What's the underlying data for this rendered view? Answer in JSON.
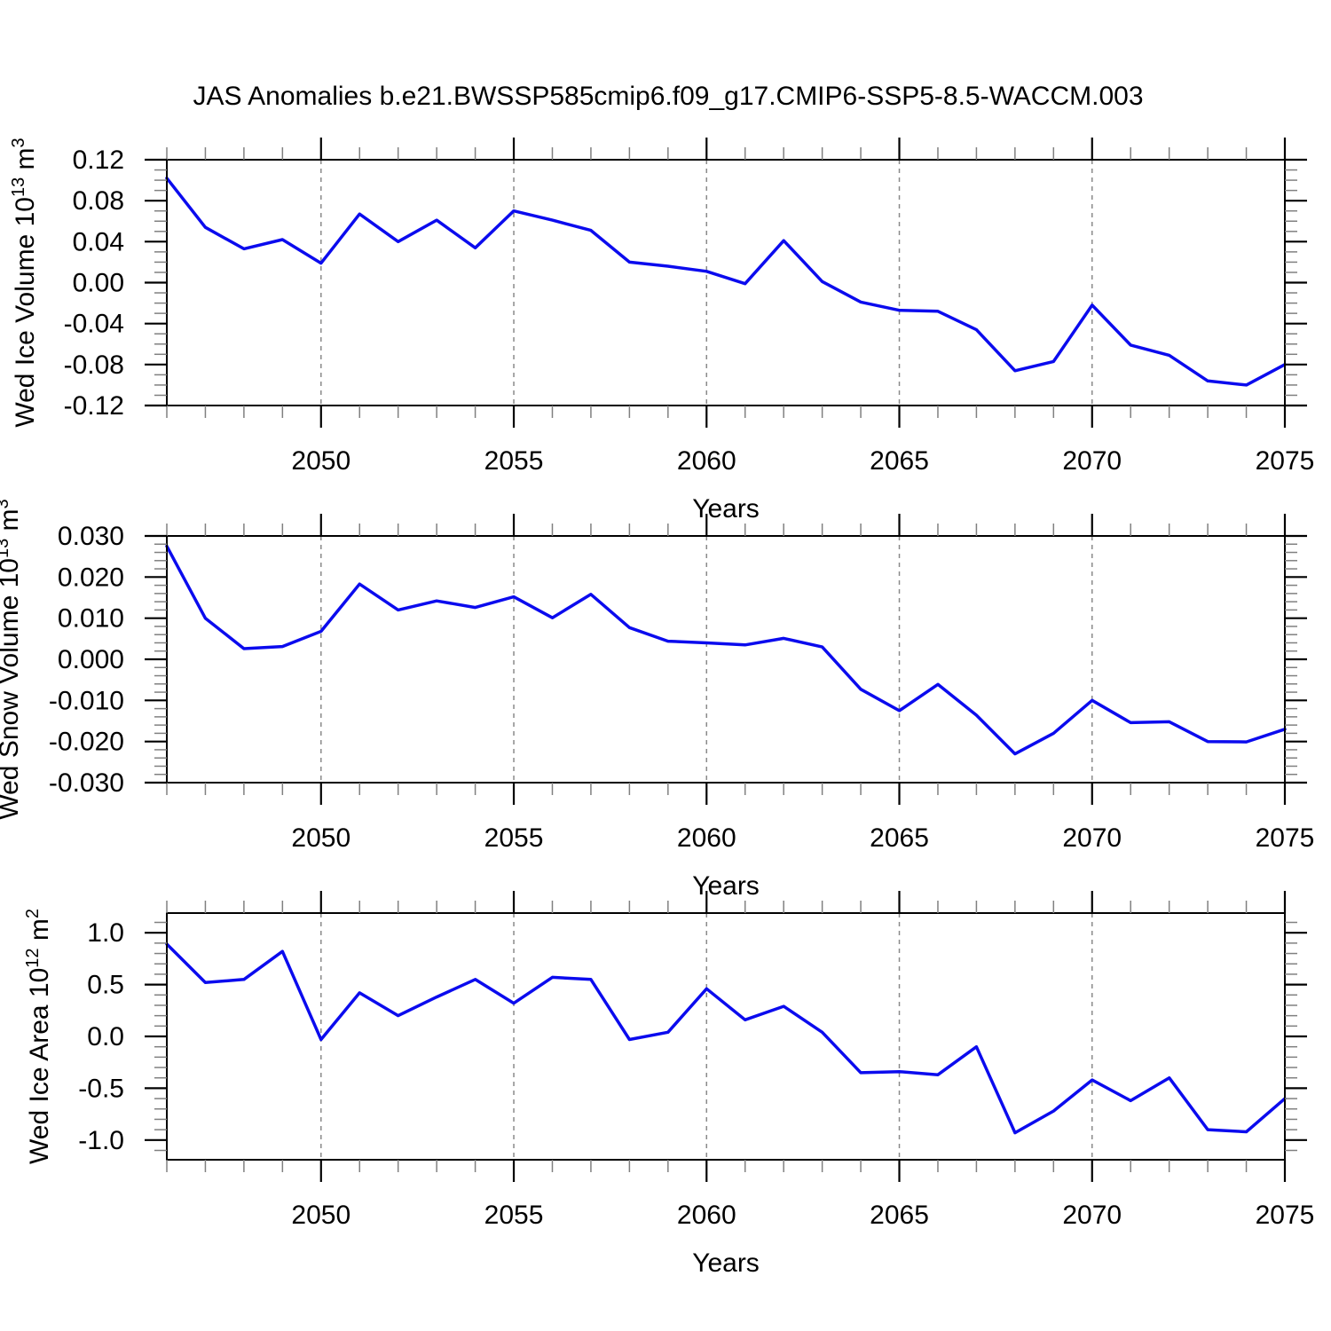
{
  "header": {
    "title": "JAS Anomalies b.e21.BWSSP585cmip6.f09_g17.CMIP6-SSP5-8.5-WACCM.003"
  },
  "style": {
    "line_color": "#0b0bee",
    "grid_color": "#8a8a8a",
    "axis_color": "#000000",
    "minor_tick_color": "#808080",
    "text_color": "#000000",
    "background": "#ffffff"
  },
  "chart_data": [
    {
      "type": "line",
      "name": "wed-ice-volume",
      "ylabel": {
        "base": "Wed Ice Volume 10",
        "exp": "13",
        "unit": " m",
        "unit_exp": "3"
      },
      "xlabel": "Years",
      "xlim": [
        2046,
        2075
      ],
      "xticks": [
        2050,
        2055,
        2060,
        2065,
        2070,
        2075
      ],
      "xtick_labels": [
        "2050",
        "2055",
        "2060",
        "2065",
        "2070",
        "2075"
      ],
      "x_minor_step": 1,
      "grid_x": [
        2050,
        2055,
        2060,
        2065,
        2070
      ],
      "ylim": [
        -0.12,
        0.12
      ],
      "yticks": [
        0.12,
        0.08,
        0.04,
        0.0,
        -0.04,
        -0.08,
        -0.12
      ],
      "ytick_labels": [
        "0.12",
        "0.08",
        "0.04",
        "0.00",
        "-0.04",
        "-0.08",
        "-0.12"
      ],
      "y_minor_step": 0.01,
      "years": [
        2046,
        2047,
        2048,
        2049,
        2050,
        2051,
        2052,
        2053,
        2054,
        2055,
        2056,
        2057,
        2058,
        2059,
        2060,
        2061,
        2062,
        2063,
        2064,
        2065,
        2066,
        2067,
        2068,
        2069,
        2070,
        2071,
        2072,
        2073,
        2074,
        2075
      ],
      "values": [
        0.102,
        0.054,
        0.033,
        0.042,
        0.019,
        0.067,
        0.04,
        0.061,
        0.034,
        0.07,
        0.061,
        0.051,
        0.02,
        0.016,
        0.011,
        -0.001,
        0.041,
        0.001,
        -0.019,
        -0.027,
        -0.028,
        -0.046,
        -0.086,
        -0.077,
        -0.022,
        -0.061,
        -0.071,
        -0.096,
        -0.1,
        -0.08
      ]
    },
    {
      "type": "line",
      "name": "wed-snow-volume",
      "ylabel": {
        "base": "Wed Snow Volume 10",
        "exp": "13",
        "unit": " m",
        "unit_exp": "3"
      },
      "xlabel": "Years",
      "xlim": [
        2046,
        2075
      ],
      "xticks": [
        2050,
        2055,
        2060,
        2065,
        2070,
        2075
      ],
      "xtick_labels": [
        "2050",
        "2055",
        "2060",
        "2065",
        "2070",
        "2075"
      ],
      "x_minor_step": 1,
      "grid_x": [
        2050,
        2055,
        2060,
        2065,
        2070
      ],
      "ylim": [
        -0.03,
        0.03
      ],
      "yticks": [
        0.03,
        0.02,
        0.01,
        0.0,
        -0.01,
        -0.02,
        -0.03
      ],
      "ytick_labels": [
        "0.030",
        "0.020",
        "0.010",
        "0.000",
        "-0.010",
        "-0.020",
        "-0.030"
      ],
      "y_minor_step": 0.002,
      "years": [
        2046,
        2047,
        2048,
        2049,
        2050,
        2051,
        2052,
        2053,
        2054,
        2055,
        2056,
        2057,
        2058,
        2059,
        2060,
        2061,
        2062,
        2063,
        2064,
        2065,
        2066,
        2067,
        2068,
        2069,
        2070,
        2071,
        2072,
        2073,
        2074,
        2075
      ],
      "values": [
        0.0275,
        0.01,
        0.0026,
        0.0031,
        0.0068,
        0.0183,
        0.012,
        0.0142,
        0.0126,
        0.0152,
        0.0101,
        0.0158,
        0.0077,
        0.0044,
        0.004,
        0.0035,
        0.0051,
        0.003,
        -0.0073,
        -0.0125,
        -0.0061,
        -0.0136,
        -0.023,
        -0.018,
        -0.01,
        -0.0154,
        -0.0152,
        -0.02,
        -0.0201,
        -0.017
      ]
    },
    {
      "type": "line",
      "name": "wed-ice-area",
      "ylabel": {
        "base": "Wed Ice Area 10",
        "exp": "12",
        "unit": " m",
        "unit_exp": "2"
      },
      "xlabel": "Years",
      "xlim": [
        2046,
        2075
      ],
      "xticks": [
        2050,
        2055,
        2060,
        2065,
        2070,
        2075
      ],
      "xtick_labels": [
        "2050",
        "2055",
        "2060",
        "2065",
        "2070",
        "2075"
      ],
      "x_minor_step": 1,
      "grid_x": [
        2050,
        2055,
        2060,
        2065,
        2070
      ],
      "ylim": [
        -1.19,
        1.19
      ],
      "yticks": [
        1.0,
        0.5,
        0.0,
        -0.5,
        -1.0
      ],
      "ytick_labels": [
        "1.0",
        "0.5",
        "0.0",
        "-0.5",
        "-1.0"
      ],
      "y_minor_step": 0.1,
      "years": [
        2046,
        2047,
        2048,
        2049,
        2050,
        2051,
        2052,
        2053,
        2054,
        2055,
        2056,
        2057,
        2058,
        2059,
        2060,
        2061,
        2062,
        2063,
        2064,
        2065,
        2066,
        2067,
        2068,
        2069,
        2070,
        2071,
        2072,
        2073,
        2074,
        2075
      ],
      "values": [
        0.89,
        0.52,
        0.55,
        0.82,
        -0.03,
        0.42,
        0.2,
        0.38,
        0.55,
        0.32,
        0.57,
        0.55,
        -0.03,
        0.04,
        0.46,
        0.16,
        0.29,
        0.04,
        -0.35,
        -0.34,
        -0.37,
        -0.1,
        -0.93,
        -0.72,
        -0.42,
        -0.62,
        -0.4,
        -0.9,
        -0.92,
        -0.6
      ]
    }
  ]
}
